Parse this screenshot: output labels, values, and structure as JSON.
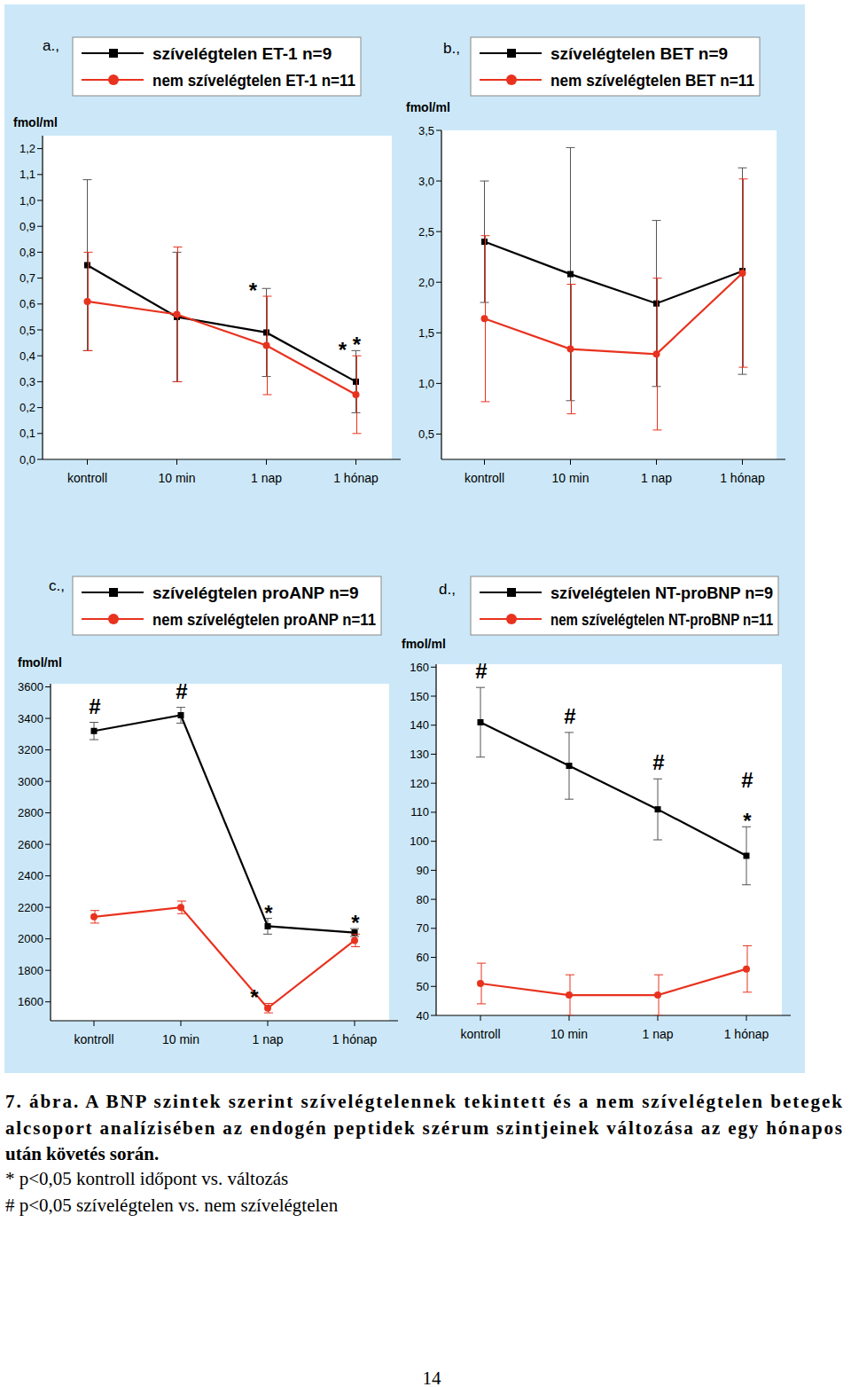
{
  "chart_data": [
    {
      "type": "line",
      "title": "a.,",
      "y_label": "fmol/ml",
      "legend": "top",
      "categories": [
        "kontroll",
        "10 min",
        "1 nap",
        "1 hónap"
      ],
      "ylim": [
        0,
        1.25
      ],
      "yticks": [
        {
          "value": 0,
          "label": "0,0"
        },
        {
          "value": 0.1,
          "label": "0,1"
        },
        {
          "value": 0.2,
          "label": "0,2"
        },
        {
          "value": 0.3,
          "label": "0,3"
        },
        {
          "value": 0.4,
          "label": "0,4"
        },
        {
          "value": 0.5,
          "label": "0,5"
        },
        {
          "value": 0.6,
          "label": "0,6"
        },
        {
          "value": 0.7,
          "label": "0,7"
        },
        {
          "value": 0.8,
          "label": "0,8"
        },
        {
          "value": 0.9,
          "label": "0,9"
        },
        {
          "value": 1.0,
          "label": "1,0"
        },
        {
          "value": 1.1,
          "label": "1,1"
        },
        {
          "value": 1.2,
          "label": "1,2"
        }
      ],
      "series": [
        {
          "name": "szívelégtelen ET-1 n=9",
          "color": "#000000",
          "marker": "square",
          "line_style": "solid",
          "values": [
            0.75,
            0.55,
            0.49,
            0.3
          ],
          "errors": [
            0.33,
            0.25,
            0.17,
            0.12
          ],
          "annotations": [
            null,
            null,
            null,
            [
              "*"
            ]
          ]
        },
        {
          "name": "nem szívelégtelen ET-1 n=11",
          "color": "#e8321e",
          "marker": "circle",
          "line_style": "solid",
          "values": [
            0.61,
            0.56,
            0.44,
            0.25
          ],
          "errors": [
            0.19,
            0.26,
            0.19,
            0.15
          ],
          "annotations": [
            null,
            null,
            [
              "*"
            ],
            [
              "*"
            ]
          ]
        }
      ]
    },
    {
      "type": "line",
      "title": "b.,",
      "y_label": "fmol/ml",
      "legend": "top",
      "categories": [
        "kontroll",
        "10 min",
        "1 nap",
        "1 hónap"
      ],
      "ylim": [
        0.25,
        3.5
      ],
      "yticks": [
        {
          "value": 0.5,
          "label": "0,5"
        },
        {
          "value": 1.0,
          "label": "1,0"
        },
        {
          "value": 1.5,
          "label": "1,5"
        },
        {
          "value": 2.0,
          "label": "2,0"
        },
        {
          "value": 2.5,
          "label": "2,5"
        },
        {
          "value": 3.0,
          "label": "3,0"
        },
        {
          "value": 3.5,
          "label": "3,5"
        }
      ],
      "series": [
        {
          "name": "szívelégtelen BET n=9",
          "color": "#000000",
          "marker": "square",
          "line_style": "solid",
          "values": [
            2.4,
            2.08,
            1.79,
            2.11
          ],
          "errors": [
            0.6,
            1.25,
            0.82,
            1.02
          ]
        },
        {
          "name": "nem szívelégtelen BET n=11",
          "color": "#e8321e",
          "marker": "circle",
          "line_style": "solid",
          "values": [
            1.64,
            1.34,
            1.29,
            2.09
          ],
          "errors": [
            0.82,
            0.64,
            0.75,
            0.93
          ]
        }
      ]
    },
    {
      "type": "line",
      "title": "c.,",
      "y_label": "fmol/ml",
      "legend": "top",
      "categories": [
        "kontroll",
        "10 min",
        "1 nap",
        "1 hónap"
      ],
      "ylim": [
        1480,
        3620
      ],
      "yticks": [
        1600,
        1800,
        2000,
        2200,
        2400,
        2600,
        2800,
        3000,
        3200,
        3400,
        3600
      ],
      "series": [
        {
          "name": "szívelégtelen proANP n=9",
          "color": "#000000",
          "marker": "square",
          "line_style": "solid",
          "values": [
            3320,
            3420,
            2080,
            2040
          ],
          "errors": [
            55,
            50,
            50,
            25
          ],
          "annotations": [
            [
              "#"
            ],
            [
              "#"
            ],
            [
              "*"
            ],
            [
              "*"
            ]
          ]
        },
        {
          "name": "nem szívelégtelen proANP n=11",
          "color": "#e8321e",
          "marker": "circle",
          "line_style": "solid",
          "values": [
            2140,
            2200,
            1560,
            1990
          ],
          "errors": [
            40,
            40,
            30,
            40
          ],
          "annotations": [
            null,
            null,
            [
              "*"
            ],
            null
          ]
        }
      ]
    },
    {
      "type": "line",
      "title": "d.,",
      "y_label": "fmol/ml",
      "legend": "top",
      "categories": [
        "kontroll",
        "10 min",
        "1 nap",
        "1 hónap"
      ],
      "ylim": [
        40,
        161
      ],
      "yticks": [
        40,
        50,
        60,
        70,
        80,
        90,
        100,
        110,
        120,
        130,
        140,
        150,
        160
      ],
      "series": [
        {
          "name": "szívelégtelen NT-proBNP n=9",
          "color": "#000000",
          "marker": "square",
          "line_style": "solid",
          "values": [
            141,
            126,
            111,
            95
          ],
          "errors": [
            12,
            11.5,
            10.5,
            10
          ],
          "annotations": [
            [
              "#"
            ],
            [
              "#"
            ],
            [
              "#"
            ],
            [
              "#",
              "*"
            ]
          ]
        },
        {
          "name": "nem szívelégtelen NT-proBNP n=11",
          "color": "#e8321e",
          "marker": "circle",
          "line_style": "solid",
          "values": [
            51,
            47,
            47,
            56
          ],
          "errors": [
            7,
            7,
            7,
            8
          ]
        }
      ]
    }
  ],
  "caption": {
    "lines": [
      "7. ábra.  A BNP szintek szerint szívelégtelennek tekintett és a nem szívelégtelen betegek",
      "alcsoport analízisében az endogén peptidek szérum szintjeinek változása az egy hónapos",
      "után követés során."
    ],
    "notes": [
      "* p<0,05 kontroll időpont vs. változás",
      "# p<0,05 szívelégtelen vs. nem szívelégtelen"
    ]
  },
  "page_number": "14"
}
